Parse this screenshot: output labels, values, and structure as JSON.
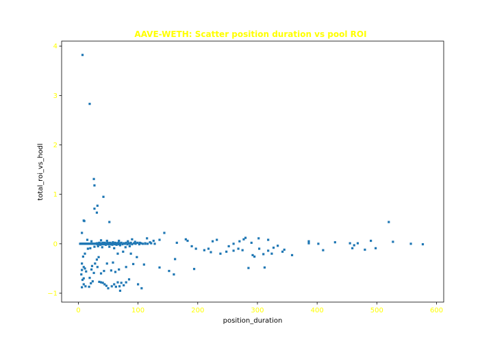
{
  "chart_data": {
    "type": "scatter",
    "title": "AAVE-WETH: Scatter position duration vs pool ROI",
    "xlabel": "position_duration",
    "ylabel": "total_roi_vs_hodl",
    "xlim": [
      -28,
      612
    ],
    "ylim": [
      -1.18,
      4.1
    ],
    "xticks": [
      0,
      100,
      200,
      300,
      400,
      500,
      600
    ],
    "yticks": [
      -1,
      0,
      1,
      2,
      3,
      4
    ],
    "colors": {
      "title": "#ffff00",
      "tick_labels": "#ffff00",
      "axis_labels": "#000000",
      "marker": "#1f77b4"
    },
    "grid": false,
    "series": [
      {
        "points": [
          [
            7,
            3.82
          ],
          [
            19,
            2.83
          ],
          [
            26,
            1.31
          ],
          [
            27,
            1.18
          ],
          [
            42,
            0.95
          ],
          [
            32,
            0.77
          ],
          [
            27,
            0.71
          ],
          [
            31,
            0.63
          ],
          [
            9,
            0.47
          ],
          [
            10,
            0.46
          ],
          [
            52,
            0.44
          ],
          [
            6,
            0.22
          ],
          [
            520,
            0.44
          ],
          [
            144,
            0.22
          ],
          [
            115,
            0.11
          ],
          [
            180,
            0.09
          ],
          [
            183,
            0.06
          ],
          [
            232,
            0.08
          ],
          [
            225,
            0.05
          ],
          [
            280,
            0.12
          ],
          [
            277,
            0.09
          ],
          [
            302,
            0.11
          ],
          [
            318,
            0.08
          ],
          [
            386,
            0.05
          ],
          [
            430,
            0.03
          ],
          [
            455,
            0.01
          ],
          [
            490,
            0.06
          ],
          [
            527,
            0.04
          ],
          [
            557,
            0.0
          ],
          [
            577,
            -0.01
          ],
          [
            386,
            0.01
          ],
          [
            136,
            0.08
          ],
          [
            126,
            0.06
          ],
          [
            165,
            0.02
          ],
          [
            260,
            0.0
          ],
          [
            270,
            0.05
          ],
          [
            290,
            0.02
          ],
          [
            334,
            -0.04
          ],
          [
            402,
            0.0
          ],
          [
            462,
            -0.03
          ],
          [
            468,
            0.01
          ],
          [
            190,
            -0.05
          ],
          [
            197,
            -0.1
          ],
          [
            211,
            -0.13
          ],
          [
            222,
            -0.17
          ],
          [
            238,
            -0.2
          ],
          [
            248,
            -0.16
          ],
          [
            260,
            -0.14
          ],
          [
            275,
            -0.13
          ],
          [
            292,
            -0.23
          ],
          [
            295,
            -0.26
          ],
          [
            303,
            -0.1
          ],
          [
            310,
            -0.21
          ],
          [
            318,
            -0.14
          ],
          [
            324,
            -0.2
          ],
          [
            342,
            -0.16
          ],
          [
            358,
            -0.23
          ],
          [
            410,
            -0.13
          ],
          [
            459,
            -0.09
          ],
          [
            480,
            -0.12
          ],
          [
            498,
            -0.09
          ],
          [
            327,
            -0.08
          ],
          [
            345,
            -0.12
          ],
          [
            162,
            -0.31
          ],
          [
            218,
            -0.1
          ],
          [
            252,
            -0.05
          ],
          [
            268,
            -0.1
          ],
          [
            66,
            -0.2
          ],
          [
            75,
            -0.16
          ],
          [
            88,
            -0.2
          ],
          [
            98,
            -0.27
          ],
          [
            110,
            -0.42
          ],
          [
            136,
            -0.48
          ],
          [
            152,
            -0.55
          ],
          [
            160,
            -0.62
          ],
          [
            194,
            -0.51
          ],
          [
            285,
            -0.49
          ],
          [
            312,
            -0.48
          ],
          [
            6,
            -0.88
          ],
          [
            9,
            -0.82
          ],
          [
            12,
            -0.86
          ],
          [
            7,
            -0.73
          ],
          [
            9,
            -0.7
          ],
          [
            5,
            -0.62
          ],
          [
            6,
            -0.53
          ],
          [
            9,
            -0.47
          ],
          [
            11,
            -0.5
          ],
          [
            13,
            -0.56
          ],
          [
            6,
            -0.4
          ],
          [
            8,
            -0.26
          ],
          [
            11,
            -0.2
          ],
          [
            18,
            -0.87
          ],
          [
            21,
            -0.8
          ],
          [
            24,
            -0.76
          ],
          [
            19,
            -0.69
          ],
          [
            26,
            -0.59
          ],
          [
            22,
            -0.52
          ],
          [
            23,
            -0.45
          ],
          [
            28,
            -0.4
          ],
          [
            31,
            -0.32
          ],
          [
            34,
            -0.27
          ],
          [
            35,
            -0.77
          ],
          [
            38,
            -0.78
          ],
          [
            41,
            -0.79
          ],
          [
            44,
            -0.82
          ],
          [
            47,
            -0.85
          ],
          [
            50,
            -0.9
          ],
          [
            56,
            -0.86
          ],
          [
            60,
            -0.82
          ],
          [
            63,
            -0.87
          ],
          [
            66,
            -0.78
          ],
          [
            69,
            -0.86
          ],
          [
            72,
            -0.79
          ],
          [
            76,
            -0.84
          ],
          [
            80,
            -0.78
          ],
          [
            85,
            -0.72
          ],
          [
            100,
            -0.82
          ],
          [
            106,
            -0.9
          ],
          [
            70,
            -0.95
          ],
          [
            43,
            -0.55
          ],
          [
            38,
            -0.6
          ],
          [
            55,
            -0.54
          ],
          [
            62,
            -0.57
          ],
          [
            68,
            -0.52
          ],
          [
            80,
            -0.47
          ],
          [
            92,
            -0.41
          ],
          [
            32,
            -0.47
          ],
          [
            48,
            -0.4
          ],
          [
            58,
            -0.38
          ],
          [
            16,
            -0.1
          ],
          [
            20,
            -0.09
          ],
          [
            27,
            -0.06
          ],
          [
            33,
            -0.05
          ],
          [
            40,
            -0.07
          ],
          [
            52,
            -0.06
          ],
          [
            60,
            -0.09
          ],
          [
            79,
            -0.07
          ],
          [
            86,
            -0.05
          ],
          [
            70,
            -0.03
          ],
          [
            15,
            0.08
          ],
          [
            22,
            0.05
          ],
          [
            38,
            0.07
          ],
          [
            48,
            0.06
          ],
          [
            58,
            0.03
          ],
          [
            68,
            0.06
          ],
          [
            83,
            0.05
          ],
          [
            90,
            0.09
          ],
          [
            95,
            0.04
          ],
          [
            103,
            0.02
          ],
          [
            112,
            0.0
          ],
          [
            120,
            0.03
          ],
          [
            3,
            0.0
          ],
          [
            4,
            0.0
          ],
          [
            5,
            0.0
          ],
          [
            6,
            0.0
          ],
          [
            7,
            0.0
          ],
          [
            8,
            0.0
          ],
          [
            9,
            0.0
          ],
          [
            10,
            0.0
          ],
          [
            11,
            0.0
          ],
          [
            12,
            0.0
          ],
          [
            13,
            0.0
          ],
          [
            14,
            0.0
          ],
          [
            15,
            0.0
          ],
          [
            16,
            0.0
          ],
          [
            17,
            0.0
          ],
          [
            18,
            0.0
          ],
          [
            19,
            0.0
          ],
          [
            20,
            0.0
          ],
          [
            21,
            0.0
          ],
          [
            22,
            0.0
          ],
          [
            23,
            0.0
          ],
          [
            24,
            0.0
          ],
          [
            25,
            0.0
          ],
          [
            26,
            0.0
          ],
          [
            27,
            0.0
          ],
          [
            28,
            0.0
          ],
          [
            29,
            0.0
          ],
          [
            30,
            0.0
          ],
          [
            31,
            0.01
          ],
          [
            32,
            -0.01
          ],
          [
            33,
            0.01
          ],
          [
            34,
            -0.01
          ],
          [
            35,
            0.02
          ],
          [
            36,
            0.0
          ],
          [
            37,
            -0.02
          ],
          [
            38,
            0.01
          ],
          [
            39,
            0.0
          ],
          [
            40,
            -0.01
          ],
          [
            41,
            0.02
          ],
          [
            42,
            0.0
          ],
          [
            43,
            -0.01
          ],
          [
            44,
            0.02
          ],
          [
            45,
            0.0
          ],
          [
            46,
            -0.02
          ],
          [
            47,
            0.01
          ],
          [
            48,
            0.0
          ],
          [
            49,
            0.02
          ],
          [
            50,
            -0.01
          ],
          [
            51,
            0.01
          ],
          [
            52,
            0.0
          ],
          [
            53,
            0.02
          ],
          [
            54,
            -0.01
          ],
          [
            55,
            0.01
          ],
          [
            56,
            0.0
          ],
          [
            57,
            -0.02
          ],
          [
            58,
            0.02
          ],
          [
            59,
            0.0
          ],
          [
            60,
            0.01
          ],
          [
            61,
            -0.01
          ],
          [
            62,
            0.02
          ],
          [
            63,
            0.0
          ],
          [
            64,
            -0.02
          ],
          [
            65,
            0.01
          ],
          [
            66,
            0.0
          ],
          [
            67,
            0.02
          ],
          [
            68,
            -0.01
          ],
          [
            69,
            0.01
          ],
          [
            70,
            0.0
          ],
          [
            72,
            0.02
          ],
          [
            74,
            -0.01
          ],
          [
            76,
            0.01
          ],
          [
            78,
            0.0
          ],
          [
            80,
            0.02
          ],
          [
            82,
            -0.01
          ],
          [
            84,
            0.01
          ],
          [
            86,
            0.0
          ],
          [
            88,
            0.02
          ],
          [
            90,
            -0.01
          ],
          [
            93,
            0.01
          ],
          [
            96,
            0.0
          ],
          [
            99,
            0.02
          ],
          [
            102,
            -0.01
          ],
          [
            105,
            0.01
          ],
          [
            108,
            0.0
          ],
          [
            112,
            0.01
          ],
          [
            116,
            0.0
          ],
          [
            122,
            0.01
          ],
          [
            128,
            0.0
          ]
        ]
      }
    ]
  }
}
